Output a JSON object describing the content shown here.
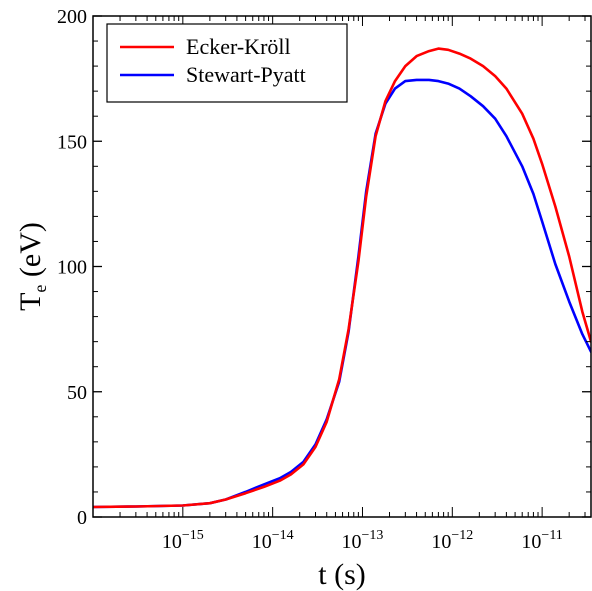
{
  "chart_data": {
    "type": "line",
    "title": "",
    "xlabel": "t (s)",
    "ylabel_main": "T",
    "ylabel_sub": "e",
    "ylabel_rest": " (eV)",
    "x_scale": "log",
    "xlim": [
      1e-16,
      3.5e-11
    ],
    "ylim": [
      0,
      200
    ],
    "y_ticks": [
      0,
      50,
      100,
      150,
      200
    ],
    "x_ticks": [
      {
        "value": 1e-15,
        "base": "10",
        "exp": "−15"
      },
      {
        "value": 1e-14,
        "base": "10",
        "exp": "−14"
      },
      {
        "value": 1e-13,
        "base": "10",
        "exp": "−13"
      },
      {
        "value": 1e-12,
        "base": "10",
        "exp": "−12"
      },
      {
        "value": 1e-11,
        "base": "10",
        "exp": "−11"
      }
    ],
    "grid": false,
    "legend_position": "top-left",
    "series": [
      {
        "name": "Ecker-Kröll",
        "color": "#ff0000",
        "x": [
          1e-16,
          3e-16,
          1e-15,
          2e-15,
          3e-15,
          5e-15,
          8e-15,
          1.2e-14,
          1.6e-14,
          2.2e-14,
          3e-14,
          4e-14,
          5.5e-14,
          7e-14,
          9e-14,
          1.1e-13,
          1.4e-13,
          1.8e-13,
          2.3e-13,
          3e-13,
          4e-13,
          5.5e-13,
          7e-13,
          9e-13,
          1.2e-12,
          1.6e-12,
          2.2e-12,
          3e-12,
          4e-12,
          6e-12,
          8e-12,
          1e-11,
          1.4e-11,
          2e-11,
          2.8e-11,
          3.5e-11
        ],
        "y": [
          4,
          4.2,
          4.6,
          5.5,
          7,
          9.5,
          12,
          14.5,
          17,
          21,
          28,
          38,
          55,
          75,
          102,
          128,
          152,
          166,
          174,
          180,
          184,
          186,
          187,
          186.5,
          185,
          183,
          180,
          176,
          171,
          161,
          151,
          141,
          124,
          104,
          82,
          70
        ]
      },
      {
        "name": "Stewart-Pyatt",
        "color": "#0000ff",
        "x": [
          1e-16,
          3e-16,
          1e-15,
          2e-15,
          3e-15,
          5e-15,
          8e-15,
          1.2e-14,
          1.6e-14,
          2.2e-14,
          3e-14,
          4e-14,
          5.5e-14,
          7e-14,
          9e-14,
          1.1e-13,
          1.4e-13,
          1.8e-13,
          2.3e-13,
          3e-13,
          4e-13,
          5.5e-13,
          7e-13,
          9e-13,
          1.2e-12,
          1.6e-12,
          2.2e-12,
          3e-12,
          4e-12,
          6e-12,
          8e-12,
          1e-11,
          1.4e-11,
          2e-11,
          2.8e-11,
          3.5e-11
        ],
        "y": [
          4,
          4.2,
          4.6,
          5.5,
          7,
          10,
          13,
          15.5,
          18,
          22,
          29,
          39,
          54,
          74,
          104,
          130,
          153,
          165,
          171,
          174,
          174.5,
          174.5,
          174,
          173,
          171,
          168,
          164,
          159,
          152,
          140,
          129,
          118,
          101,
          86,
          73,
          66
        ]
      }
    ]
  }
}
